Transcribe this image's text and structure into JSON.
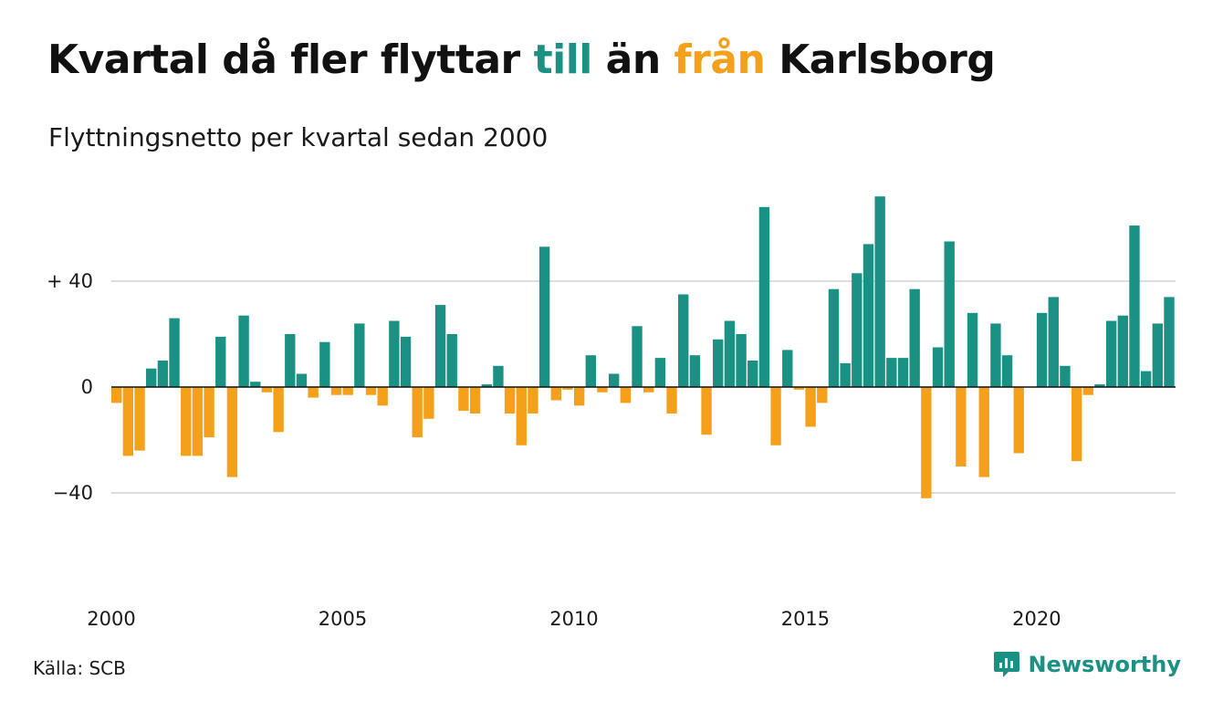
{
  "title": {
    "part1": "Kvartal då fler flyttar ",
    "till": "till",
    "part2": " än ",
    "fran": "från",
    "part3": " Karlsborg"
  },
  "subtitle": "Flyttningsnetto per kvartal sedan 2000",
  "source": "Källa: SCB",
  "brand": {
    "name": "Newsworthy",
    "icon": "newsworthy-logo-icon"
  },
  "colors": {
    "positive": "#1a9183",
    "negative": "#f5a01a",
    "grid": "#dddddd"
  },
  "chart_data": {
    "type": "bar",
    "start_year": 2000,
    "periods_per_year": 4,
    "ylim": [
      -75,
      75
    ],
    "yticks": [
      {
        "value": 40,
        "label": "+ 40"
      },
      {
        "value": 0,
        "label": "0"
      },
      {
        "value": -40,
        "label": "−40"
      }
    ],
    "xticks": [
      {
        "year": 2000,
        "label": "2000"
      },
      {
        "year": 2005,
        "label": "2005"
      },
      {
        "year": 2010,
        "label": "2010"
      },
      {
        "year": 2015,
        "label": "2015"
      },
      {
        "year": 2020,
        "label": "2020"
      }
    ],
    "grid": true,
    "legend": "in title",
    "values": [
      -6,
      -26,
      -24,
      7,
      10,
      26,
      -26,
      -26,
      -19,
      19,
      -34,
      27,
      2,
      -2,
      -17,
      20,
      5,
      -4,
      17,
      -3,
      -3,
      24,
      -3,
      -7,
      25,
      19,
      -19,
      -12,
      31,
      20,
      -9,
      -10,
      1,
      8,
      -10,
      -22,
      -10,
      53,
      -5,
      -1,
      -7,
      12,
      -2,
      5,
      -6,
      23,
      -2,
      11,
      -10,
      35,
      12,
      -18,
      18,
      25,
      20,
      10,
      68,
      -22,
      14,
      -1,
      -15,
      -6,
      37,
      9,
      43,
      54,
      72,
      11,
      11,
      37,
      -42,
      15,
      55,
      -30,
      28,
      -34,
      24,
      12,
      -25,
      0,
      28,
      34,
      8,
      -28,
      -3,
      1,
      25,
      27,
      61,
      6,
      24,
      34
    ]
  }
}
